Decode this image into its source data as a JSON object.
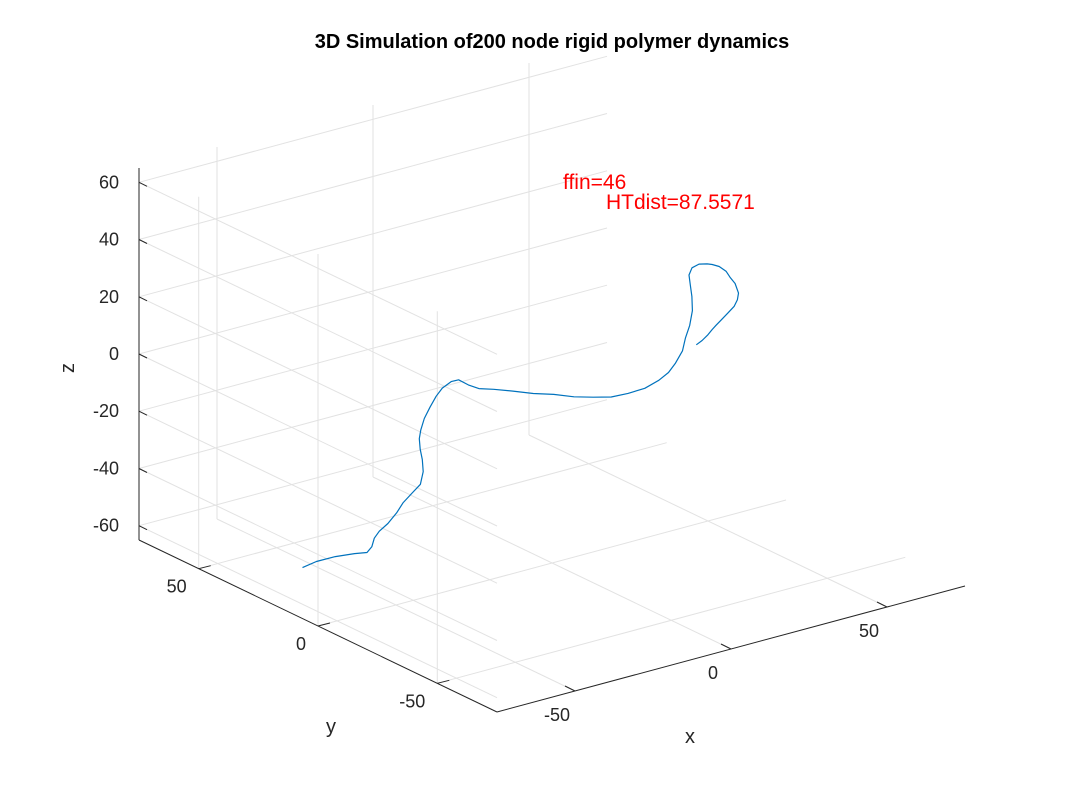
{
  "chart_data": {
    "type": "line",
    "projection": "3d",
    "title": "3D Simulation of200 node rigid polymer dynamics",
    "xlabel": "x",
    "ylabel": "y",
    "zlabel": "z",
    "xlim": [
      -75,
      75
    ],
    "ylim": [
      -75,
      75
    ],
    "zlim": [
      -65,
      65
    ],
    "xticks": [
      -50,
      0,
      50
    ],
    "yticks": [
      -50,
      0,
      50
    ],
    "zticks": [
      -60,
      -40,
      -20,
      0,
      20,
      40,
      60
    ],
    "grid": true,
    "series": [
      {
        "color": "#0072bd",
        "points": [
          [
            -74.6,
            7.0,
            -47.5
          ],
          [
            -71.0,
            5.9,
            -46.0
          ],
          [
            -66.0,
            4.5,
            -45.2
          ],
          [
            -61.0,
            3.0,
            -45.0
          ],
          [
            -58.0,
            1.7,
            -45.0
          ],
          [
            -57.0,
            1.0,
            -43.0
          ],
          [
            -56.5,
            0.6,
            -40.0
          ],
          [
            -55.5,
            -0.2,
            -37.5
          ],
          [
            -53.5,
            -1.2,
            -35.0
          ],
          [
            -51.5,
            -2.2,
            -31.5
          ],
          [
            -50.0,
            -3.0,
            -28.0
          ],
          [
            -48.0,
            -4.0,
            -25.0
          ],
          [
            -46.0,
            -5.0,
            -22.0
          ],
          [
            -45.5,
            -5.5,
            -17.5
          ],
          [
            -46.0,
            -5.8,
            -13.0
          ],
          [
            -47.0,
            -6.2,
            -9.0
          ],
          [
            -47.5,
            -6.5,
            -5.0
          ],
          [
            -46.5,
            -5.8,
            -2.5
          ],
          [
            -44.0,
            -4.0,
            0.0
          ],
          [
            -41.0,
            -2.5,
            2.5
          ],
          [
            -37.5,
            -0.5,
            4.5
          ],
          [
            -34.0,
            1.5,
            5.5
          ],
          [
            -30.0,
            3.0,
            6.0
          ],
          [
            -26.5,
            4.5,
            5.0
          ],
          [
            -23.0,
            5.0,
            2.0
          ],
          [
            -20.0,
            4.5,
            0.0
          ],
          [
            -16.0,
            3.5,
            -1.0
          ],
          [
            -11.0,
            2.0,
            -2.5
          ],
          [
            -6.0,
            0.0,
            -4.0
          ],
          [
            -1.0,
            -2.0,
            -5.0
          ],
          [
            4.0,
            -4.0,
            -6.5
          ],
          [
            9.0,
            -5.5,
            -7.5
          ],
          [
            14.0,
            -6.5,
            -8.5
          ],
          [
            19.0,
            -7.0,
            -8.5
          ],
          [
            24.0,
            -7.5,
            -8.0
          ],
          [
            28.5,
            -7.5,
            -6.5
          ],
          [
            32.0,
            -7.0,
            -5.0
          ],
          [
            35.0,
            -6.0,
            -3.0
          ],
          [
            38.0,
            -5.0,
            0.0
          ],
          [
            40.5,
            -3.0,
            3.0
          ],
          [
            43.0,
            -1.5,
            6.0
          ],
          [
            45.0,
            0.0,
            10.0
          ],
          [
            46.0,
            1.5,
            14.0
          ],
          [
            47.0,
            3.5,
            17.0
          ],
          [
            48.5,
            6.0,
            19.0
          ],
          [
            51.0,
            8.0,
            20.0
          ],
          [
            54.0,
            9.0,
            20.0
          ],
          [
            57.0,
            9.5,
            19.0
          ],
          [
            59.0,
            10.0,
            18.0
          ],
          [
            62.0,
            11.0,
            16.0
          ],
          [
            65.0,
            12.0,
            13.0
          ],
          [
            67.0,
            13.0,
            10.0
          ],
          [
            69.0,
            13.5,
            7.0
          ],
          [
            70.5,
            14.0,
            3.0
          ],
          [
            70.5,
            14.5,
            0.5
          ],
          [
            69.5,
            14.5,
            -1.5
          ],
          [
            67.0,
            14.0,
            -3.0
          ],
          [
            64.5,
            13.5,
            -4.5
          ],
          [
            62.5,
            13.0,
            -5.5
          ],
          [
            60.5,
            12.0,
            -6.0
          ],
          [
            58.0,
            10.5,
            -6.5
          ],
          [
            55.0,
            9.0,
            -7.0
          ],
          [
            52.0,
            7.5,
            -7.0
          ]
        ]
      }
    ],
    "annotations": [
      "ffin=46",
      "HTdist=87.5571"
    ]
  }
}
